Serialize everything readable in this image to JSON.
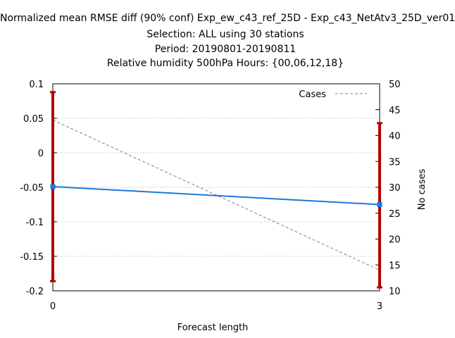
{
  "title_lines": [
    "Normalized mean RMSE diff (90% conf) Exp_ew_c43_ref_25D - Exp_c43_NetAtv3_25D_ver01",
    "Selection: ALL using    30 stations",
    "Period: 20190801-20190811",
    "Relative humidity 500hPa   Hours: {00,06,12,18}"
  ],
  "chart_data": {
    "type": "line",
    "xlabel": "Forecast length",
    "ylabel": "",
    "y2label": "No cases",
    "x_ticks": [
      0,
      3
    ],
    "xlim": [
      0,
      3
    ],
    "ylim": [
      -0.2,
      0.1
    ],
    "y_ticks": [
      0.1,
      0.05,
      0,
      -0.05,
      -0.1,
      -0.15,
      -0.2
    ],
    "y2lim": [
      10,
      50
    ],
    "y2_ticks": [
      50,
      45,
      40,
      35,
      30,
      25,
      20,
      15,
      10
    ],
    "grid": "horizontal dotted",
    "legend_position": "top-right",
    "series": [
      {
        "name": "",
        "axis": "left",
        "x": [
          0,
          3
        ],
        "values": [
          -0.049,
          -0.075
        ],
        "color": "#1e78dc",
        "error_bars": [
          [
            -0.186,
            0.088
          ],
          [
            -0.195,
            0.043
          ]
        ],
        "error_color": "#b40000"
      },
      {
        "name": "Cases",
        "axis": "right",
        "x": [
          0,
          3
        ],
        "values": [
          43,
          14
        ],
        "color": "#808080",
        "dash": true
      }
    ]
  }
}
